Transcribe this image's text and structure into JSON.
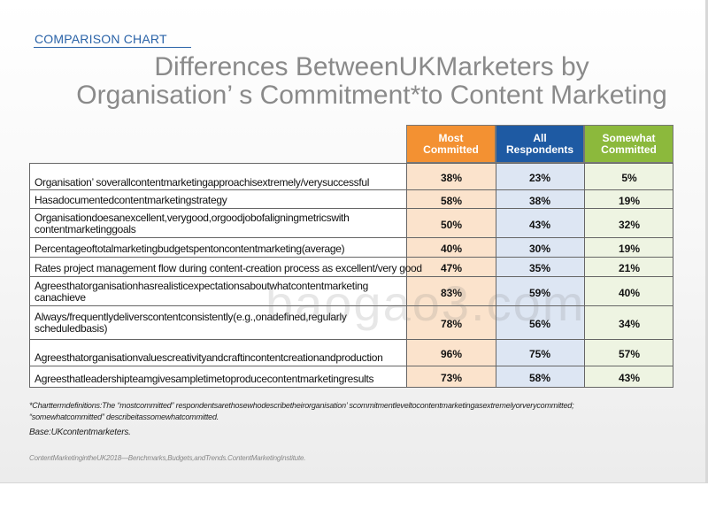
{
  "section_label": "COMPARISON CHART",
  "title_line1": "Differences BetweenUKMarketers by",
  "title_line2": "Organisation’  s Commitment*to Content Marketing",
  "watermark": "baogao3.com",
  "colors": {
    "most_committed": "#f39132",
    "all_respondents": "#1e5aa3",
    "somewhat_committed": "#8cb93c",
    "most_committed_light": "#fbe3cc",
    "all_respondents_light": "#dde6f3",
    "somewhat_committed_light": "#eef4e2"
  },
  "chart_data": {
    "type": "table",
    "columns": [
      {
        "key": "most",
        "label_line1": "Most",
        "label_line2": "Committed"
      },
      {
        "key": "all",
        "label_line1": "All",
        "label_line2": "Respondents"
      },
      {
        "key": "somewhat",
        "label_line1": "Somewhat",
        "label_line2": "Committed"
      }
    ],
    "rows": [
      {
        "label_line1": "Organisation’  soverallcontentmarketingapproachisextremely/verysuccessful",
        "label_line2": "",
        "values": [
          "38%",
          "23%",
          "5%"
        ]
      },
      {
        "label_line1": "Hasadocumentedcontentmarketingstrategy",
        "label_line2": "",
        "values": [
          "58%",
          "38%",
          "19%"
        ]
      },
      {
        "label_line1": "Organisationdoesanexcellent,verygood,orgoodjobofaligningmetricswith",
        "label_line2": "contentmarketinggoals",
        "values": [
          "50%",
          "43%",
          "32%"
        ]
      },
      {
        "label_line1": "Percentageoftotalmarketingbudgetspentoncontentmarketing(average)",
        "label_line2": "",
        "values": [
          "40%",
          "30%",
          "19%"
        ]
      },
      {
        "label_line1": "Rates project management flow during content-creation process as excellent/very good",
        "label_line2": "",
        "values": [
          "47%",
          "35%",
          "21%"
        ]
      },
      {
        "label_line1": "Agreesthatorganisationhasrealisticexpectationsaboutwhatcontentmarketing",
        "label_line2": "canachieve",
        "values": [
          "83%",
          "59%",
          "40%"
        ]
      },
      {
        "label_line1": "Always/frequentlydeliverscontentconsistently(e.g.,onadefined,regularly",
        "label_line2": "scheduledbasis)",
        "values": [
          "78%",
          "56%",
          "34%"
        ]
      },
      {
        "label_line1": "Agreesthatorganisationvaluescreativityandcraftincontentcreationandproduction",
        "label_line2": "",
        "values": [
          "96%",
          "75%",
          "57%"
        ]
      },
      {
        "label_line1": "Agreesthatleadershipteamgivesampletimetoproducecontentmarketingresults",
        "label_line2": "",
        "values": [
          "73%",
          "58%",
          "43%"
        ]
      }
    ]
  },
  "footnote_line1": "*Charttermdefinitions:The  “mostcommitted”  respondentsarethosewhodescribetheirorganisation’  scommitmentleveltocontentmarketingasextremelyorverycommitted;",
  "footnote_line2": "  “somewhatcommitted”  describeitassomewhatcommitted.",
  "base_note": "Base:UKcontentmarketers.",
  "source": "ContentMarketingintheUK2018—Benchmarks,Budgets,andTrends.ContentMarketingInstitute."
}
